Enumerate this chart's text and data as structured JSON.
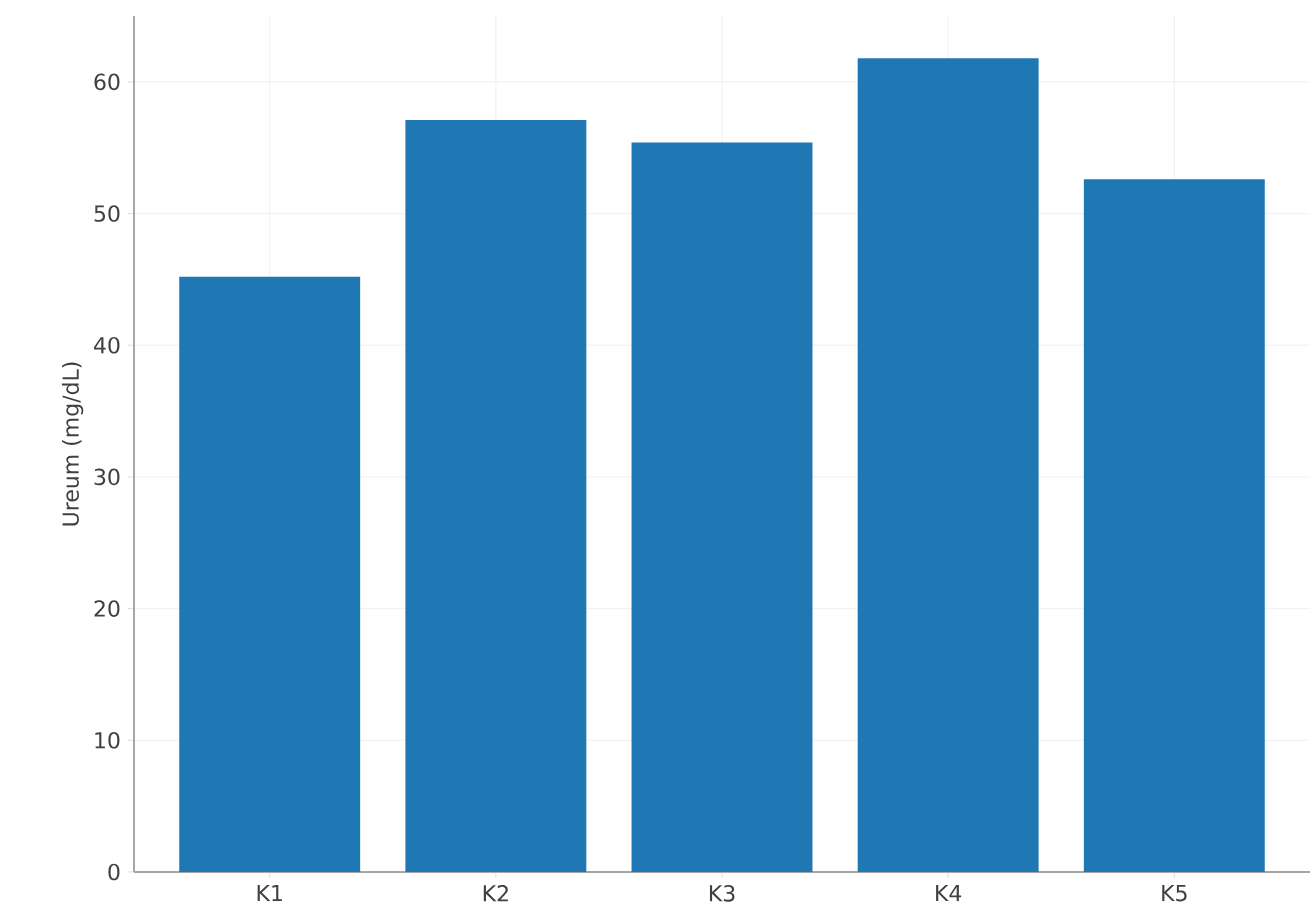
{
  "chart_data": {
    "type": "bar",
    "ylabel": "Ureum (mg/dL)",
    "categories": [
      "K1",
      "K2",
      "K3",
      "K4",
      "K5"
    ],
    "values": [
      45.2,
      57.1,
      55.4,
      61.8,
      52.6
    ],
    "color": "#1f77b4",
    "ylim": [
      0,
      65
    ],
    "yticks": [
      0,
      10,
      20,
      30,
      40,
      50,
      60
    ],
    "grid": true
  }
}
